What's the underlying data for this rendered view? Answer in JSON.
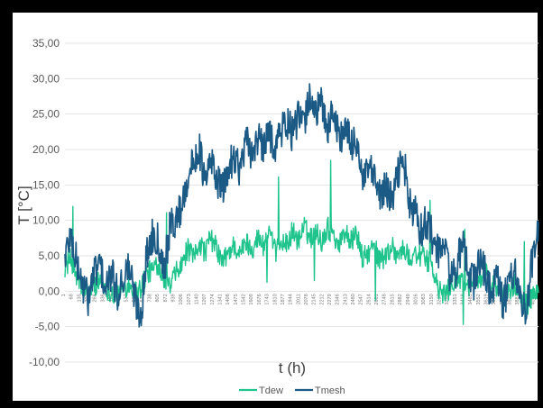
{
  "chart_data": {
    "type": "line",
    "title": "",
    "xlabel": "t (h)",
    "ylabel": "T [°C]",
    "ylim": [
      -10,
      35
    ],
    "yticks": [
      "-10,00",
      "-5,00",
      "0,00",
      "5,00",
      "10,00",
      "15,00",
      "20,00",
      "25,00",
      "30,00",
      "35,00"
    ],
    "xlim": [
      1,
      4055
    ],
    "xticks": [
      1,
      68,
      135,
      202,
      269,
      336,
      403,
      470,
      537,
      604,
      671,
      738,
      805,
      872,
      939,
      1006,
      1073,
      1140,
      1207,
      1274,
      1341,
      1408,
      1475,
      1542,
      1609,
      1676,
      1743,
      1810,
      1877,
      1944,
      2011,
      2078,
      2145,
      2212,
      2279,
      2346,
      2413,
      2480,
      2547,
      2614,
      2681,
      2748,
      2815,
      2882,
      2949,
      3016,
      3083,
      3150,
      3217,
      3284,
      3351,
      3418,
      3485,
      3552,
      3619,
      3686,
      3753,
      3820,
      3887,
      3954,
      4021
    ],
    "grid": "horizontal",
    "legend_position": "bottom",
    "series": [
      {
        "name": "Tdew",
        "color": "#1fc48c",
        "x": [
          1,
          50,
          100,
          150,
          200,
          250,
          300,
          350,
          400,
          450,
          500,
          550,
          600,
          650,
          700,
          750,
          800,
          850,
          900,
          950,
          1000,
          1050,
          1100,
          1150,
          1200,
          1250,
          1300,
          1350,
          1400,
          1450,
          1500,
          1550,
          1600,
          1650,
          1700,
          1750,
          1800,
          1850,
          1900,
          1950,
          2000,
          2050,
          2100,
          2150,
          2200,
          2250,
          2300,
          2350,
          2400,
          2450,
          2500,
          2550,
          2600,
          2650,
          2700,
          2750,
          2800,
          2850,
          2900,
          2950,
          3000,
          3050,
          3100,
          3150,
          3200,
          3250,
          3300,
          3350,
          3400,
          3450,
          3500,
          3550,
          3600,
          3650,
          3700,
          3750,
          3800,
          3850,
          3900,
          3950,
          4000,
          4055
        ],
        "values": [
          3.5,
          4.5,
          2.0,
          0.5,
          -0.5,
          0.8,
          1.5,
          0.5,
          0.0,
          -0.8,
          0.5,
          1.0,
          0.0,
          0.5,
          2.5,
          3.0,
          4.0,
          2.0,
          0.5,
          2.5,
          3.5,
          6.0,
          4.5,
          7.0,
          5.5,
          7.5,
          6.0,
          4.0,
          5.5,
          6.5,
          5.0,
          7.0,
          6.0,
          7.5,
          6.5,
          8.0,
          5.5,
          7.0,
          6.5,
          8.5,
          7.0,
          9.0,
          7.5,
          8.5,
          7.0,
          9.0,
          8.0,
          6.5,
          8.5,
          7.0,
          8.0,
          4.5,
          5.5,
          6.0,
          4.5,
          5.0,
          6.5,
          5.0,
          6.0,
          4.5,
          5.5,
          5.0,
          4.5,
          3.0,
          0.0,
          -0.5,
          0.5,
          2.0,
          1.0,
          0.5,
          2.0,
          1.5,
          2.5,
          1.0,
          0.5,
          -1.0,
          0.0,
          1.0,
          -0.5,
          -2.0,
          -1.0,
          0.0
        ],
        "line_width": 1.4
      },
      {
        "name": "Tmesh",
        "color": "#1c5a86",
        "x": [
          1,
          50,
          100,
          150,
          200,
          250,
          300,
          350,
          400,
          450,
          500,
          550,
          600,
          650,
          700,
          750,
          800,
          850,
          900,
          950,
          1000,
          1050,
          1100,
          1150,
          1200,
          1250,
          1300,
          1350,
          1400,
          1450,
          1500,
          1550,
          1600,
          1650,
          1700,
          1750,
          1800,
          1850,
          1900,
          1950,
          2000,
          2050,
          2100,
          2150,
          2200,
          2250,
          2300,
          2350,
          2400,
          2450,
          2500,
          2550,
          2600,
          2650,
          2700,
          2750,
          2800,
          2850,
          2900,
          2950,
          3000,
          3050,
          3100,
          3150,
          3200,
          3250,
          3300,
          3350,
          3400,
          3450,
          3500,
          3550,
          3600,
          3650,
          3700,
          3750,
          3800,
          3850,
          3900,
          3950,
          4000,
          4055
        ],
        "values": [
          5.0,
          8.0,
          4.0,
          1.0,
          -1.0,
          2.5,
          4.0,
          0.0,
          2.5,
          -0.5,
          2.0,
          3.5,
          -1.0,
          -3.5,
          5.0,
          8.0,
          7.5,
          3.0,
          9.0,
          10.0,
          12.0,
          16.0,
          18.0,
          20.5,
          15.0,
          18.5,
          16.0,
          14.0,
          17.0,
          19.5,
          17.0,
          21.0,
          19.5,
          21.5,
          20.0,
          22.5,
          20.5,
          22.5,
          24.0,
          22.0,
          24.5,
          23.5,
          28.0,
          25.0,
          26.5,
          23.0,
          25.5,
          21.5,
          23.0,
          20.5,
          21.5,
          15.0,
          17.5,
          15.5,
          13.5,
          14.5,
          12.5,
          16.5,
          19.0,
          12.0,
          11.0,
          8.5,
          10.0,
          7.5,
          5.0,
          7.0,
          2.0,
          3.0,
          6.5,
          3.5,
          1.0,
          4.5,
          2.5,
          -0.5,
          2.0,
          -2.0,
          1.0,
          3.5,
          -1.0,
          -3.5,
          4.5,
          8.0
        ],
        "line_width": 1.7
      }
    ]
  }
}
